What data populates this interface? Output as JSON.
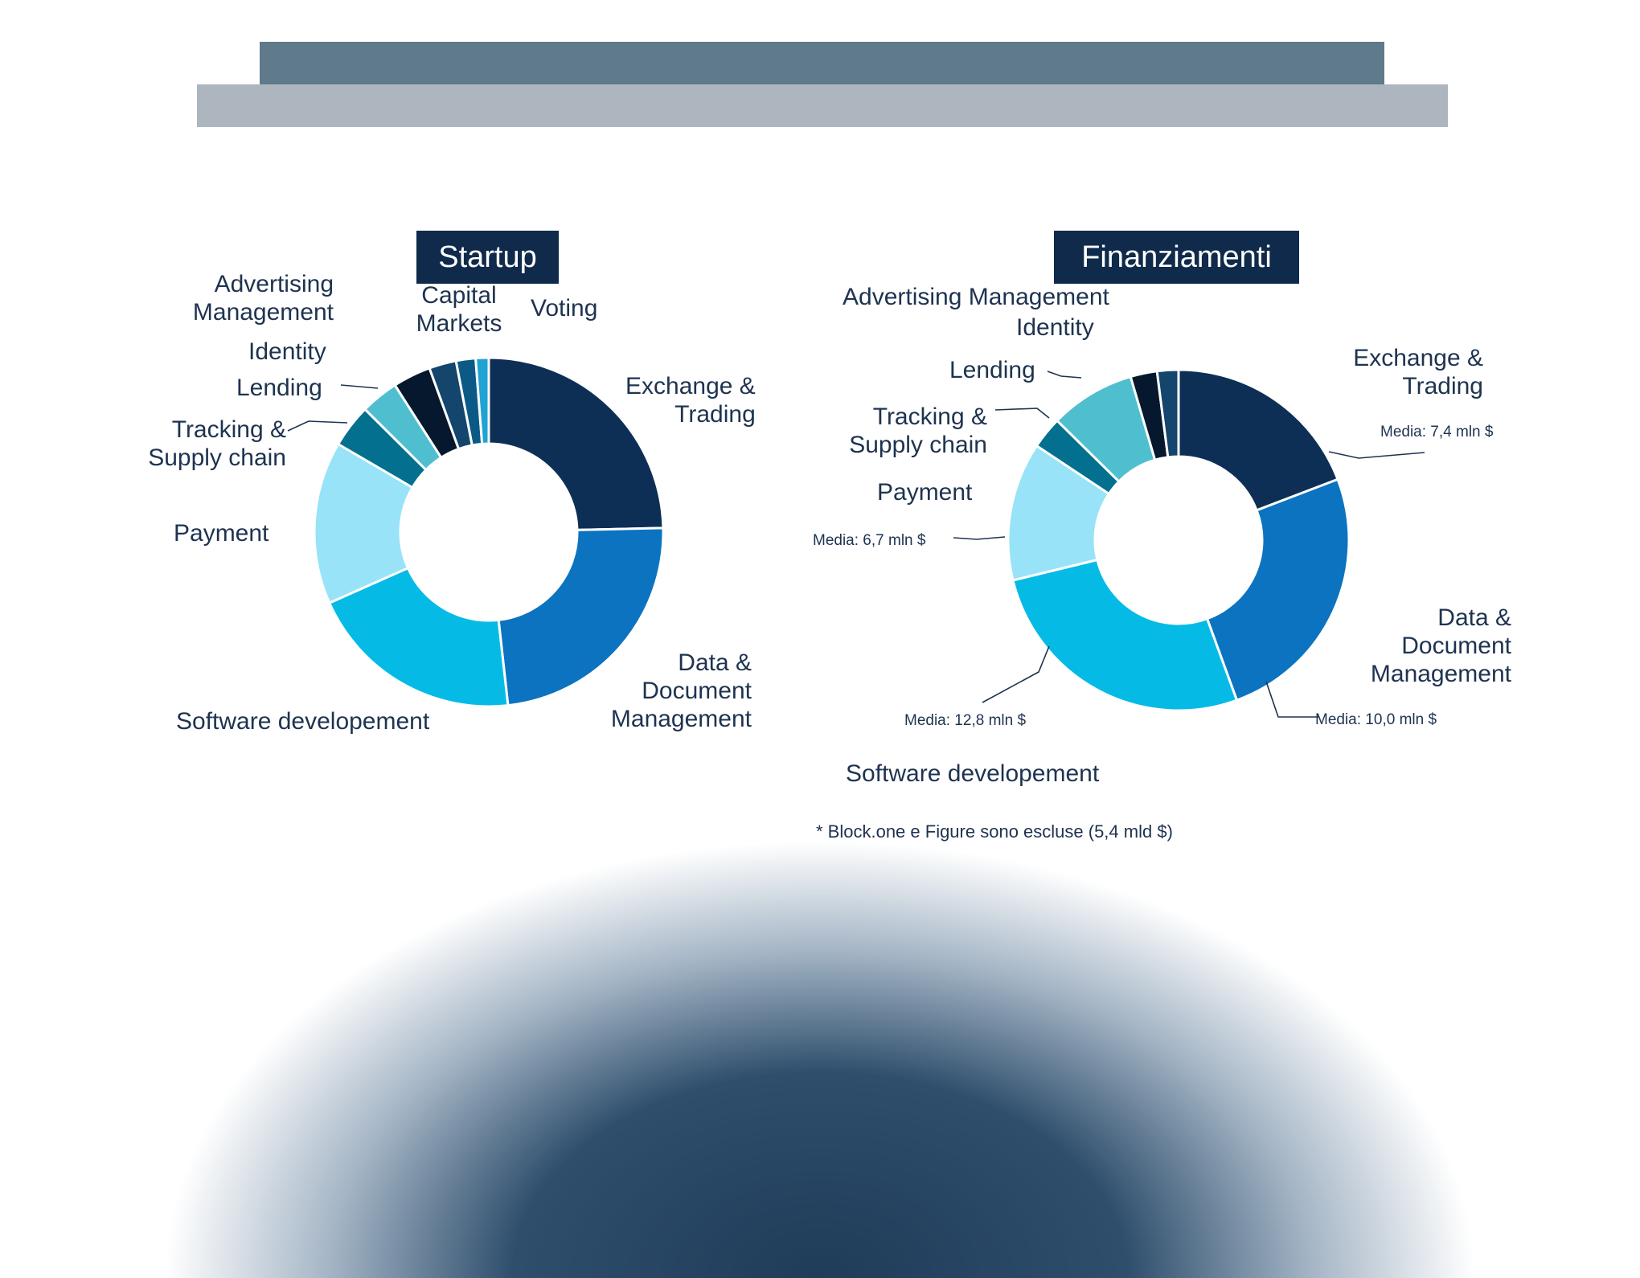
{
  "header": {
    "bands": [
      "#5e7a8b",
      "#adb5bf"
    ]
  },
  "chart_data": [
    {
      "type": "pie",
      "title": "Startup",
      "donut": true,
      "series": [
        {
          "name": "Exchange & Trading",
          "value": 24.5,
          "color": "#0d2f55"
        },
        {
          "name": "Data & Document Management",
          "value": 23.5,
          "color": "#0b73c0"
        },
        {
          "name": "Software developement",
          "value": 20,
          "color": "#05bbe6"
        },
        {
          "name": "Payment",
          "value": 15,
          "color": "#98e3f8"
        },
        {
          "name": "Tracking & Supply chain",
          "value": 4,
          "color": "#04708f"
        },
        {
          "name": "Lending",
          "value": 3.5,
          "color": "#4fbfd0"
        },
        {
          "name": "Identity",
          "value": 3.5,
          "color": "#06182e"
        },
        {
          "name": "Advertising Management",
          "value": 2.5,
          "color": "#14456c"
        },
        {
          "name": "Capital Markets",
          "value": 1.8,
          "color": "#0b5a86"
        },
        {
          "name": "Voting",
          "value": 1.2,
          "color": "#20a3d3"
        }
      ]
    },
    {
      "type": "pie",
      "title": "Finanziamenti",
      "donut": true,
      "series": [
        {
          "name": "Exchange & Trading",
          "value": 19,
          "color": "#0d2f55",
          "average": "Media: 7,4 mln $"
        },
        {
          "name": "Data & Document Management",
          "value": 25,
          "color": "#0b73c0",
          "average": "Media: 10,0 mln $"
        },
        {
          "name": "Software developement",
          "value": 26.5,
          "color": "#05bbe6",
          "average": "Media: 12,8 mln $"
        },
        {
          "name": "Payment",
          "value": 13,
          "color": "#98e3f8",
          "average": "Media: 6,7 mln $"
        },
        {
          "name": "Tracking & Supply chain",
          "value": 3,
          "color": "#04708f"
        },
        {
          "name": "Lending",
          "value": 8,
          "color": "#4fbfd0"
        },
        {
          "name": "Identity",
          "value": 2.5,
          "color": "#06182e"
        },
        {
          "name": "Advertising Management",
          "value": 2,
          "color": "#14456c"
        }
      ]
    }
  ],
  "labels": {
    "left": {
      "exchange": [
        "Exchange &",
        "Trading"
      ],
      "data_doc": [
        "Data &",
        "Document",
        "Management"
      ],
      "software": "Software developement",
      "payment": "Payment",
      "tracking": [
        "Tracking &",
        "Supply chain"
      ],
      "lending": "Lending",
      "identity": "Identity",
      "advertising": [
        "Advertising",
        "Management"
      ],
      "capital": [
        "Capital",
        "Markets"
      ],
      "voting": "Voting"
    },
    "right": {
      "exchange": [
        "Exchange &",
        "Trading"
      ],
      "data_doc": [
        "Data &",
        "Document",
        "Management"
      ],
      "software": "Software developement",
      "payment": "Payment",
      "tracking": [
        "Tracking &",
        "Supply chain"
      ],
      "lending": "Lending",
      "advertising": "Advertising Management",
      "identity": "Identity"
    }
  },
  "footnote": "* Block.one e Figure sono escluse (5,4 mld $)"
}
